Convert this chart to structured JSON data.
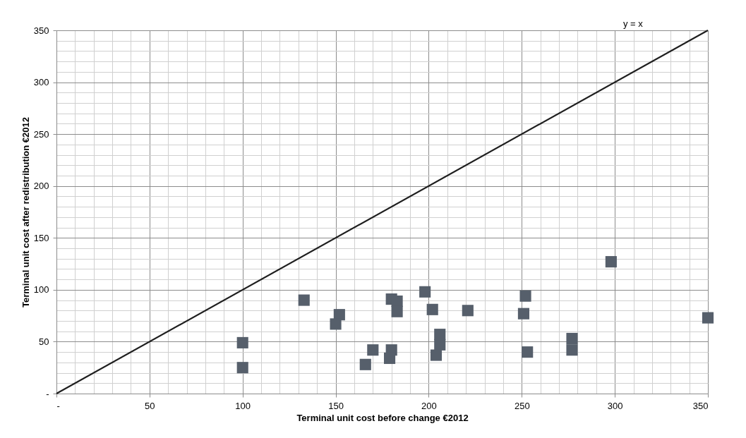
{
  "chart_data": {
    "type": "scatter",
    "xlabel": "Terminal unit cost before change €2012",
    "ylabel": "Terminal unit cost after redistribution €2012",
    "annotations": [
      "y = x"
    ],
    "xlim": [
      0,
      350
    ],
    "ylim": [
      0,
      350
    ],
    "xticks": [
      {
        "value": 0,
        "label": "-"
      },
      {
        "value": 10,
        "label": null
      },
      {
        "value": 20,
        "label": null
      },
      {
        "value": 30,
        "label": null
      },
      {
        "value": 40,
        "label": null
      },
      50,
      {
        "value": 60,
        "label": null
      },
      {
        "value": 70,
        "label": null
      },
      {
        "value": 80,
        "label": null
      },
      {
        "value": 90,
        "label": null
      },
      100,
      {
        "value": 110,
        "label": null
      },
      {
        "value": 120,
        "label": null
      },
      {
        "value": 130,
        "label": null
      },
      {
        "value": 140,
        "label": null
      },
      150,
      {
        "value": 160,
        "label": null
      },
      {
        "value": 170,
        "label": null
      },
      {
        "value": 180,
        "label": null
      },
      {
        "value": 190,
        "label": null
      },
      200,
      {
        "value": 210,
        "label": null
      },
      {
        "value": 220,
        "label": null
      },
      {
        "value": 230,
        "label": null
      },
      {
        "value": 240,
        "label": null
      },
      250,
      {
        "value": 260,
        "label": null
      },
      {
        "value": 270,
        "label": null
      },
      {
        "value": 280,
        "label": null
      },
      {
        "value": 290,
        "label": null
      },
      300,
      {
        "value": 310,
        "label": null
      },
      {
        "value": 320,
        "label": null
      },
      {
        "value": 330,
        "label": null
      },
      {
        "value": 340,
        "label": null
      },
      350
    ],
    "yticks": [
      {
        "value": 0,
        "label": "-"
      },
      {
        "value": 10,
        "label": null
      },
      {
        "value": 20,
        "label": null
      },
      {
        "value": 30,
        "label": null
      },
      {
        "value": 40,
        "label": null
      },
      50,
      {
        "value": 60,
        "label": null
      },
      {
        "value": 70,
        "label": null
      },
      {
        "value": 80,
        "label": null
      },
      {
        "value": 90,
        "label": null
      },
      100,
      {
        "value": 110,
        "label": null
      },
      {
        "value": 120,
        "label": null
      },
      {
        "value": 130,
        "label": null
      },
      {
        "value": 140,
        "label": null
      },
      150,
      {
        "value": 160,
        "label": null
      },
      {
        "value": 170,
        "label": null
      },
      {
        "value": 180,
        "label": null
      },
      {
        "value": 190,
        "label": null
      },
      200,
      {
        "value": 210,
        "label": null
      },
      {
        "value": 220,
        "label": null
      },
      {
        "value": 230,
        "label": null
      },
      {
        "value": 240,
        "label": null
      },
      250,
      {
        "value": 260,
        "label": null
      },
      {
        "value": 270,
        "label": null
      },
      {
        "value": 280,
        "label": null
      },
      {
        "value": 290,
        "label": null
      },
      300,
      {
        "value": 310,
        "label": null
      },
      {
        "value": 320,
        "label": null
      },
      {
        "value": 330,
        "label": null
      },
      {
        "value": 340,
        "label": null
      },
      350
    ],
    "grid": true,
    "series": [
      {
        "color": "#565f6b",
        "marker": "square",
        "x": [
          100,
          100,
          133,
          152,
          150,
          170,
          166,
          180,
          179,
          180,
          183,
          183,
          198,
          202,
          221,
          206,
          206,
          204,
          298,
          252,
          251,
          253,
          277,
          277,
          350
        ],
        "values": [
          49,
          25,
          90,
          76,
          67,
          42,
          28,
          42,
          34,
          91,
          89,
          79,
          98,
          81,
          80,
          57,
          47,
          37,
          127,
          94,
          77,
          40,
          53,
          42,
          73
        ]
      },
      {
        "type": "line",
        "color": "#1f1f1f",
        "line_style": "solid",
        "marker": "none",
        "x": [
          0,
          350
        ],
        "values": [
          0,
          350
        ]
      }
    ]
  }
}
